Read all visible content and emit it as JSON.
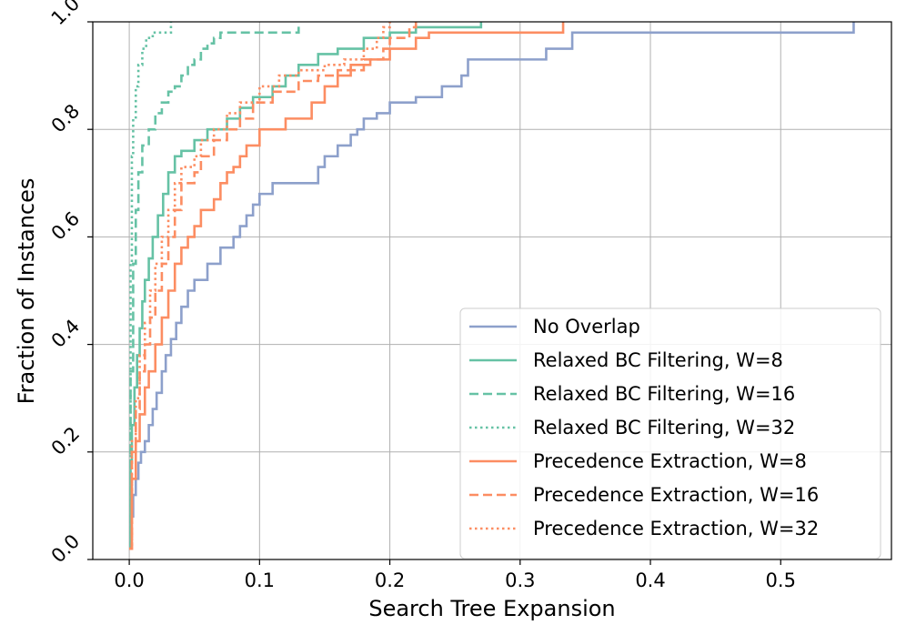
{
  "chart_data": {
    "type": "line",
    "subtype": "step-cdf",
    "title": "",
    "xlabel": "Search Tree Expansion",
    "ylabel": "Fraction of Instances",
    "xlim": [
      -0.028,
      0.585
    ],
    "ylim": [
      0.0,
      1.0
    ],
    "xticks": [
      0.0,
      0.1,
      0.2,
      0.3,
      0.4,
      0.5
    ],
    "xtick_labels": [
      "0.0",
      "0.1",
      "0.2",
      "0.3",
      "0.4",
      "0.5"
    ],
    "yticks": [
      0.0,
      0.2,
      0.4,
      0.6,
      0.8,
      1.0
    ],
    "ytick_labels": [
      "0.0",
      "0.2",
      "0.4",
      "0.6",
      "0.8",
      "1.0"
    ],
    "grid": true,
    "legend_position": "lower-right",
    "colors": {
      "no_overlap": "#8da0cb",
      "relaxed": "#66c2a5",
      "precedence": "#fc8d62"
    },
    "series": [
      {
        "name": "No Overlap",
        "color": "#8da0cb",
        "dash": "solid",
        "points": [
          [
            0.0,
            0.02
          ],
          [
            0.001,
            0.08
          ],
          [
            0.003,
            0.12
          ],
          [
            0.005,
            0.15
          ],
          [
            0.007,
            0.18
          ],
          [
            0.009,
            0.2
          ],
          [
            0.012,
            0.22
          ],
          [
            0.015,
            0.25
          ],
          [
            0.018,
            0.28
          ],
          [
            0.021,
            0.31
          ],
          [
            0.025,
            0.35
          ],
          [
            0.028,
            0.38
          ],
          [
            0.032,
            0.41
          ],
          [
            0.036,
            0.44
          ],
          [
            0.04,
            0.47
          ],
          [
            0.045,
            0.5
          ],
          [
            0.05,
            0.52
          ],
          [
            0.06,
            0.55
          ],
          [
            0.07,
            0.58
          ],
          [
            0.08,
            0.6
          ],
          [
            0.085,
            0.62
          ],
          [
            0.09,
            0.64
          ],
          [
            0.095,
            0.66
          ],
          [
            0.1,
            0.68
          ],
          [
            0.11,
            0.7
          ],
          [
            0.135,
            0.7
          ],
          [
            0.143,
            0.7
          ],
          [
            0.145,
            0.73
          ],
          [
            0.15,
            0.75
          ],
          [
            0.16,
            0.77
          ],
          [
            0.17,
            0.79
          ],
          [
            0.175,
            0.8
          ],
          [
            0.18,
            0.82
          ],
          [
            0.19,
            0.83
          ],
          [
            0.2,
            0.85
          ],
          [
            0.22,
            0.86
          ],
          [
            0.24,
            0.88
          ],
          [
            0.255,
            0.9
          ],
          [
            0.26,
            0.93
          ],
          [
            0.3,
            0.93
          ],
          [
            0.32,
            0.95
          ],
          [
            0.34,
            0.98
          ],
          [
            0.553,
            0.98
          ],
          [
            0.556,
            1.0
          ]
        ]
      },
      {
        "name": "Relaxed BC Filtering, W=8",
        "color": "#66c2a5",
        "dash": "solid",
        "points": [
          [
            0.0,
            0.02
          ],
          [
            0.001,
            0.18
          ],
          [
            0.002,
            0.25
          ],
          [
            0.004,
            0.32
          ],
          [
            0.006,
            0.38
          ],
          [
            0.008,
            0.43
          ],
          [
            0.01,
            0.48
          ],
          [
            0.012,
            0.52
          ],
          [
            0.015,
            0.56
          ],
          [
            0.018,
            0.6
          ],
          [
            0.022,
            0.64
          ],
          [
            0.026,
            0.68
          ],
          [
            0.03,
            0.72
          ],
          [
            0.035,
            0.75
          ],
          [
            0.04,
            0.76
          ],
          [
            0.05,
            0.78
          ],
          [
            0.06,
            0.8
          ],
          [
            0.075,
            0.82
          ],
          [
            0.085,
            0.84
          ],
          [
            0.095,
            0.86
          ],
          [
            0.11,
            0.88
          ],
          [
            0.12,
            0.9
          ],
          [
            0.13,
            0.92
          ],
          [
            0.145,
            0.94
          ],
          [
            0.16,
            0.95
          ],
          [
            0.18,
            0.97
          ],
          [
            0.2,
            0.98
          ],
          [
            0.22,
            0.99
          ],
          [
            0.27,
            1.0
          ]
        ]
      },
      {
        "name": "Relaxed BC Filtering, W=16",
        "color": "#66c2a5",
        "dash": "dashed",
        "points": [
          [
            0.0,
            0.02
          ],
          [
            0.001,
            0.35
          ],
          [
            0.003,
            0.55
          ],
          [
            0.005,
            0.65
          ],
          [
            0.007,
            0.72
          ],
          [
            0.01,
            0.77
          ],
          [
            0.015,
            0.8
          ],
          [
            0.02,
            0.83
          ],
          [
            0.025,
            0.85
          ],
          [
            0.03,
            0.87
          ],
          [
            0.035,
            0.88
          ],
          [
            0.04,
            0.9
          ],
          [
            0.045,
            0.92
          ],
          [
            0.05,
            0.93
          ],
          [
            0.055,
            0.95
          ],
          [
            0.06,
            0.96
          ],
          [
            0.065,
            0.97
          ],
          [
            0.07,
            0.98
          ],
          [
            0.1,
            0.98
          ],
          [
            0.13,
            1.0
          ]
        ]
      },
      {
        "name": "Relaxed BC Filtering, W=32",
        "color": "#66c2a5",
        "dash": "dotted",
        "points": [
          [
            0.0,
            0.02
          ],
          [
            0.001,
            0.55
          ],
          [
            0.002,
            0.75
          ],
          [
            0.003,
            0.82
          ],
          [
            0.005,
            0.88
          ],
          [
            0.007,
            0.92
          ],
          [
            0.01,
            0.95
          ],
          [
            0.013,
            0.97
          ],
          [
            0.018,
            0.98
          ],
          [
            0.03,
            0.98
          ],
          [
            0.032,
            1.0
          ]
        ]
      },
      {
        "name": "Precedence Extraction, W=8",
        "color": "#fc8d62",
        "dash": "solid",
        "points": [
          [
            0.0,
            0.02
          ],
          [
            0.002,
            0.15
          ],
          [
            0.005,
            0.22
          ],
          [
            0.008,
            0.27
          ],
          [
            0.012,
            0.32
          ],
          [
            0.015,
            0.35
          ],
          [
            0.02,
            0.4
          ],
          [
            0.025,
            0.45
          ],
          [
            0.03,
            0.5
          ],
          [
            0.035,
            0.55
          ],
          [
            0.04,
            0.58
          ],
          [
            0.045,
            0.6
          ],
          [
            0.05,
            0.62
          ],
          [
            0.055,
            0.65
          ],
          [
            0.065,
            0.67
          ],
          [
            0.07,
            0.7
          ],
          [
            0.075,
            0.72
          ],
          [
            0.08,
            0.73
          ],
          [
            0.085,
            0.75
          ],
          [
            0.09,
            0.77
          ],
          [
            0.1,
            0.8
          ],
          [
            0.12,
            0.82
          ],
          [
            0.14,
            0.85
          ],
          [
            0.15,
            0.88
          ],
          [
            0.16,
            0.9
          ],
          [
            0.17,
            0.92
          ],
          [
            0.185,
            0.93
          ],
          [
            0.2,
            0.95
          ],
          [
            0.22,
            0.97
          ],
          [
            0.23,
            0.98
          ],
          [
            0.33,
            0.98
          ],
          [
            0.333,
            1.0
          ]
        ]
      },
      {
        "name": "Precedence Extraction, W=16",
        "color": "#fc8d62",
        "dash": "dashed",
        "points": [
          [
            0.0,
            0.02
          ],
          [
            0.002,
            0.2
          ],
          [
            0.005,
            0.28
          ],
          [
            0.008,
            0.35
          ],
          [
            0.012,
            0.4
          ],
          [
            0.016,
            0.45
          ],
          [
            0.02,
            0.5
          ],
          [
            0.025,
            0.55
          ],
          [
            0.03,
            0.6
          ],
          [
            0.035,
            0.65
          ],
          [
            0.04,
            0.7
          ],
          [
            0.05,
            0.72
          ],
          [
            0.055,
            0.75
          ],
          [
            0.065,
            0.78
          ],
          [
            0.075,
            0.8
          ],
          [
            0.085,
            0.82
          ],
          [
            0.095,
            0.85
          ],
          [
            0.11,
            0.87
          ],
          [
            0.13,
            0.89
          ],
          [
            0.145,
            0.9
          ],
          [
            0.16,
            0.91
          ],
          [
            0.18,
            0.93
          ],
          [
            0.195,
            0.95
          ],
          [
            0.2,
            0.97
          ],
          [
            0.215,
            0.99
          ],
          [
            0.22,
            1.0
          ]
        ]
      },
      {
        "name": "Precedence Extraction, W=32",
        "color": "#fc8d62",
        "dash": "dotted",
        "points": [
          [
            0.0,
            0.02
          ],
          [
            0.002,
            0.22
          ],
          [
            0.005,
            0.3
          ],
          [
            0.008,
            0.38
          ],
          [
            0.012,
            0.44
          ],
          [
            0.016,
            0.5
          ],
          [
            0.02,
            0.55
          ],
          [
            0.025,
            0.6
          ],
          [
            0.03,
            0.65
          ],
          [
            0.035,
            0.7
          ],
          [
            0.04,
            0.73
          ],
          [
            0.05,
            0.75
          ],
          [
            0.055,
            0.78
          ],
          [
            0.065,
            0.8
          ],
          [
            0.075,
            0.83
          ],
          [
            0.085,
            0.85
          ],
          [
            0.1,
            0.88
          ],
          [
            0.115,
            0.9
          ],
          [
            0.13,
            0.91
          ],
          [
            0.15,
            0.92
          ],
          [
            0.165,
            0.93
          ],
          [
            0.18,
            0.95
          ],
          [
            0.19,
            0.97
          ],
          [
            0.195,
            0.99
          ],
          [
            0.2,
            1.0
          ]
        ]
      }
    ]
  }
}
